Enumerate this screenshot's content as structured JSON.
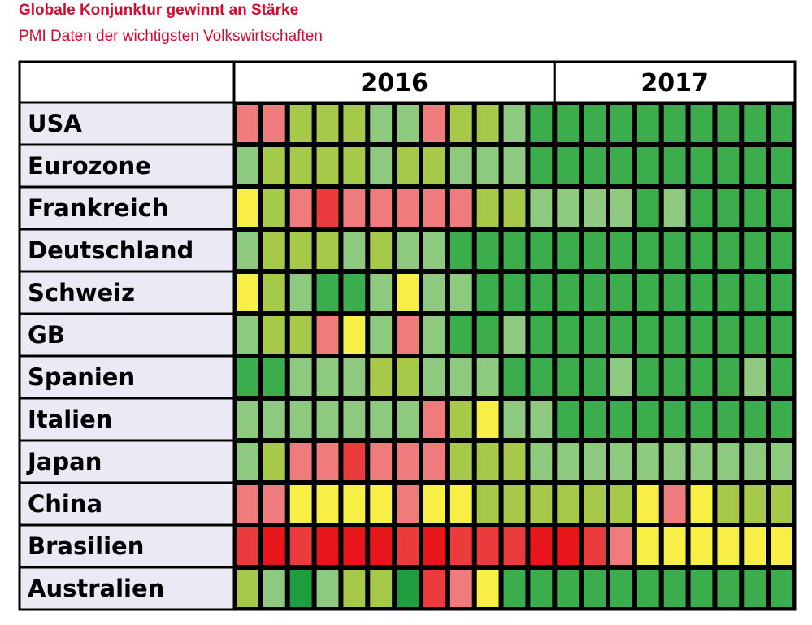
{
  "header": {
    "title": "Globale Konjunktur gewinnt an Stärke",
    "subtitle": "PMI Daten der wichtigsten Volkswirtschaften"
  },
  "colors": {
    "1": "#e8161a",
    "2": "#ea3b3d",
    "3": "#f07b7c",
    "4": "#f7ee46",
    "5": "#a6c94a",
    "6": "#8dc97e",
    "7": "#3bad4d",
    "8": "#1f9e40",
    "border": "#000000",
    "label_bg": "#ebeaf4"
  },
  "chart_data": {
    "type": "heatmap",
    "title": "Globale Konjunktur gewinnt an Stärke",
    "subtitle": "PMI Daten der wichtigsten Volkswirtschaften",
    "years": [
      {
        "label": "2016",
        "months": 12
      },
      {
        "label": "2017",
        "months": 9
      }
    ],
    "rows": [
      {
        "label": "USA",
        "values": [
          3,
          3,
          5,
          5,
          5,
          6,
          6,
          3,
          5,
          5,
          6,
          7,
          7,
          7,
          7,
          7,
          7,
          7,
          7,
          7,
          7
        ]
      },
      {
        "label": "Eurozone",
        "values": [
          6,
          5,
          5,
          5,
          5,
          6,
          5,
          5,
          6,
          6,
          6,
          7,
          7,
          7,
          7,
          7,
          7,
          7,
          7,
          7,
          7
        ]
      },
      {
        "label": "Frankreich",
        "values": [
          4,
          5,
          3,
          2,
          3,
          3,
          3,
          3,
          3,
          5,
          5,
          6,
          6,
          6,
          6,
          7,
          6,
          7,
          7,
          7,
          7
        ]
      },
      {
        "label": "Deutschland",
        "values": [
          6,
          5,
          5,
          5,
          6,
          5,
          6,
          6,
          7,
          7,
          7,
          7,
          7,
          7,
          7,
          7,
          7,
          7,
          7,
          7,
          7
        ]
      },
      {
        "label": "Schweiz",
        "values": [
          4,
          5,
          6,
          7,
          7,
          6,
          4,
          6,
          6,
          7,
          7,
          7,
          7,
          7,
          7,
          7,
          7,
          7,
          7,
          7,
          7
        ]
      },
      {
        "label": "GB",
        "values": [
          6,
          5,
          5,
          3,
          4,
          6,
          3,
          6,
          7,
          7,
          6,
          7,
          7,
          7,
          7,
          7,
          7,
          7,
          7,
          7,
          7
        ]
      },
      {
        "label": "Spanien",
        "values": [
          7,
          7,
          6,
          6,
          6,
          5,
          5,
          6,
          6,
          6,
          7,
          7,
          7,
          7,
          6,
          7,
          7,
          7,
          7,
          6,
          7
        ]
      },
      {
        "label": "Italien",
        "values": [
          6,
          6,
          6,
          6,
          6,
          6,
          6,
          3,
          5,
          4,
          6,
          6,
          7,
          7,
          7,
          7,
          7,
          7,
          7,
          7,
          7
        ]
      },
      {
        "label": "Japan",
        "values": [
          6,
          5,
          3,
          3,
          2,
          3,
          3,
          3,
          5,
          5,
          5,
          6,
          6,
          6,
          6,
          6,
          6,
          6,
          6,
          6,
          6
        ]
      },
      {
        "label": "China",
        "values": [
          3,
          3,
          4,
          4,
          4,
          4,
          3,
          4,
          4,
          5,
          5,
          5,
          5,
          5,
          5,
          4,
          3,
          4,
          5,
          5,
          5
        ]
      },
      {
        "label": "Brasilien",
        "values": [
          2,
          1,
          2,
          1,
          1,
          1,
          2,
          1,
          2,
          2,
          2,
          1,
          1,
          2,
          3,
          4,
          4,
          4,
          4,
          4,
          4
        ]
      },
      {
        "label": "Australien",
        "values": [
          5,
          6,
          8,
          6,
          5,
          5,
          8,
          2,
          3,
          4,
          7,
          7,
          7,
          7,
          7,
          7,
          7,
          7,
          7,
          7,
          7
        ]
      }
    ],
    "legend": "none",
    "grid": true
  }
}
